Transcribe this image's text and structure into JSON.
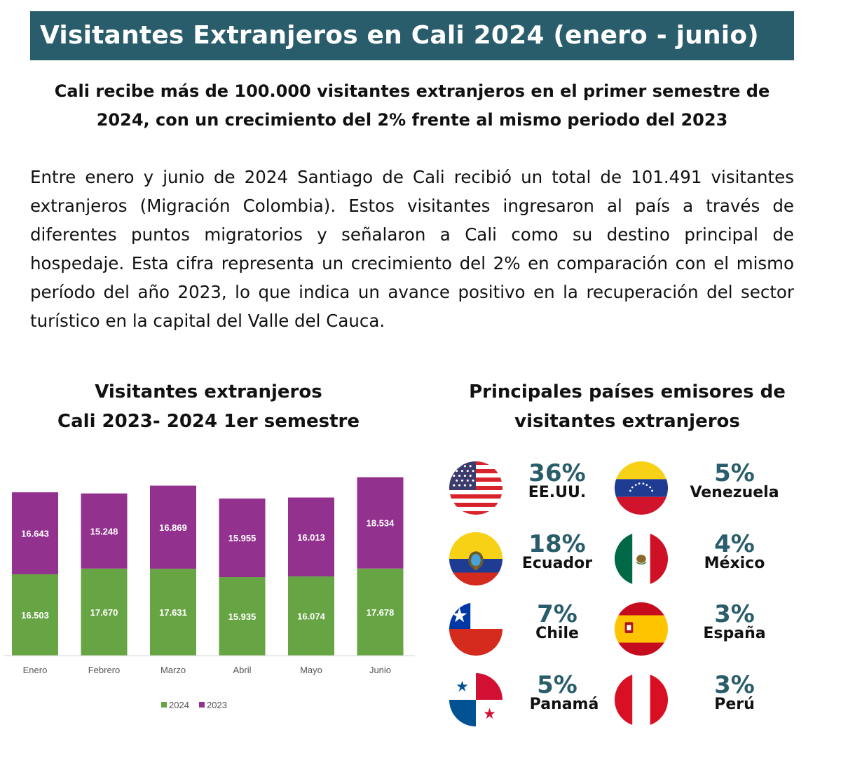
{
  "header": {
    "title": "Visitantes Extranjeros en Cali 2024 (enero - junio)"
  },
  "subtitle": "Cali recibe más de 100.000 visitantes extranjeros en el primer semestre de 2024, con un crecimiento del 2% frente al mismo periodo del 2023",
  "paragraph": "Entre enero y junio de 2024 Santiago de Cali recibió un total de 101.491 visitantes extranjeros (Migración Colombia). Estos visitantes ingresaron al país a través de diferentes puntos migratorios y señalaron a Cali como su destino principal de hospedaje. Esta cifra representa un crecimiento del 2% en comparación con el mismo período del año 2023, lo que indica un avance positivo en la recuperación del sector turístico en la capital del Valle del Cauca.",
  "chart_title": {
    "line1": "Visitantes extranjeros",
    "line2": "Cali 2023- 2024 1er semestre"
  },
  "countries_title": {
    "line1": "Principales países emisores de",
    "line2": "visitantes extranjeros"
  },
  "chart_data": {
    "type": "bar",
    "stacked": true,
    "categories": [
      "Enero",
      "Febrero",
      "Marzo",
      "Abril",
      "Mayo",
      "Junio"
    ],
    "series": [
      {
        "name": "2024",
        "color": "#67a443",
        "values": [
          16503,
          17670,
          17631,
          15935,
          16074,
          17678
        ],
        "labels": [
          "16.503",
          "17.670",
          "17.631",
          "15.935",
          "16.074",
          "17.678"
        ]
      },
      {
        "name": "2023",
        "color": "#93328e",
        "values": [
          16643,
          15248,
          16869,
          15955,
          16013,
          18534
        ],
        "labels": [
          "16.643",
          "15.248",
          "16.869",
          "15.955",
          "16.013",
          "18.534"
        ]
      }
    ],
    "ylim": [
      0,
      37000
    ],
    "legend": "bottom",
    "grid": false
  },
  "countries": [
    {
      "pct": "36%",
      "name": "EE.UU.",
      "flag": "usa-flag-icon"
    },
    {
      "pct": "5%",
      "name": "Venezuela",
      "flag": "venezuela-flag-icon"
    },
    {
      "pct": "18%",
      "name": "Ecuador",
      "flag": "ecuador-flag-icon"
    },
    {
      "pct": "4%",
      "name": "México",
      "flag": "mexico-flag-icon"
    },
    {
      "pct": "7%",
      "name": "Chile",
      "flag": "chile-flag-icon"
    },
    {
      "pct": "3%",
      "name": "España",
      "flag": "spain-flag-icon"
    },
    {
      "pct": "5%",
      "name": "Panamá",
      "flag": "panama-flag-icon"
    },
    {
      "pct": "3%",
      "name": "Perú",
      "flag": "peru-flag-icon"
    }
  ]
}
